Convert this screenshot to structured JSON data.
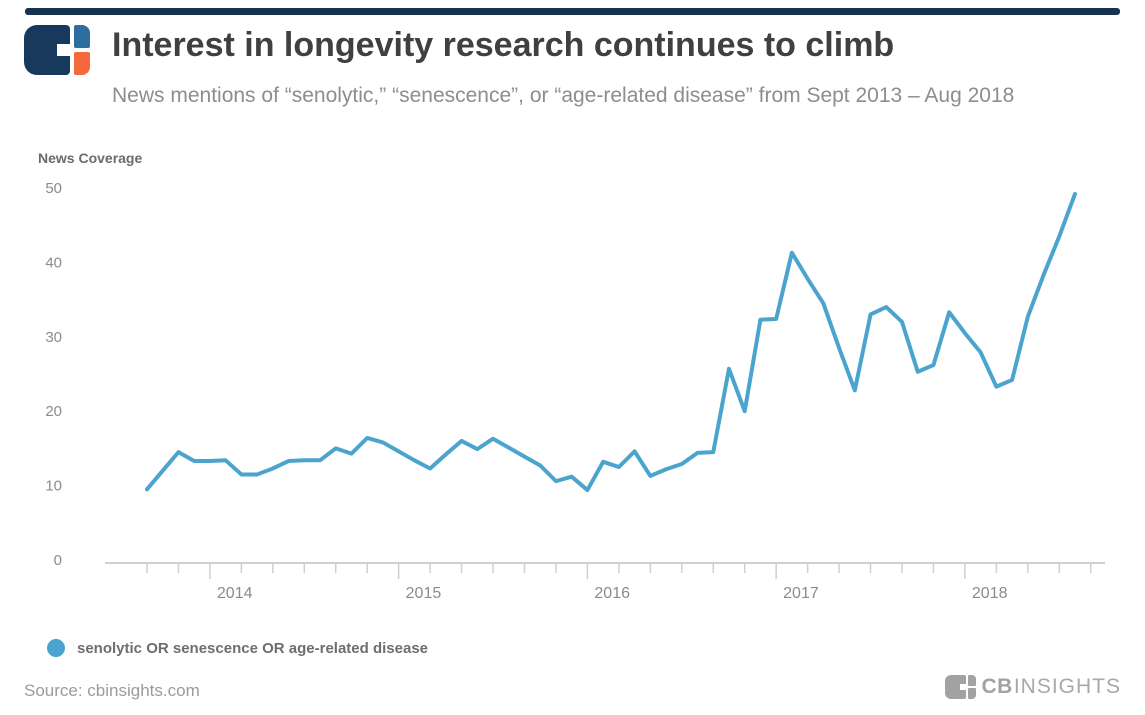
{
  "header": {
    "title": "Interest in longevity research continues to climb",
    "subtitle": "News mentions of “senolytic,” “senescence”, or “age-related disease” from Sept 2013 – Aug 2018"
  },
  "chart": {
    "axis_title": "News Coverage",
    "y_ticks": [
      50,
      40,
      30,
      20,
      10,
      0
    ],
    "x_ticks": [
      "2014",
      "2015",
      "2016",
      "2017",
      "2018"
    ],
    "legend": {
      "label": "senolytic OR senescence OR age-related disease",
      "color": "#4aa4ce"
    }
  },
  "chart_data": {
    "type": "line",
    "title": "Interest in longevity research continues to climb",
    "subtitle": "News mentions of “senolytic,” “senescence”, or “age-related disease” from Sept 2013 – Aug 2018",
    "xlabel": "",
    "ylabel": "News Coverage",
    "ylim": [
      0,
      50
    ],
    "grid": false,
    "legend_position": "bottom-left",
    "x": [
      "Sep 2013",
      "Oct 2013",
      "Nov 2013",
      "Dec 2013",
      "Jan 2014",
      "Feb 2014",
      "Mar 2014",
      "Apr 2014",
      "May 2014",
      "Jun 2014",
      "Jul 2014",
      "Aug 2014",
      "Sep 2014",
      "Oct 2014",
      "Nov 2014",
      "Dec 2014",
      "Jan 2015",
      "Feb 2015",
      "Mar 2015",
      "Apr 2015",
      "May 2015",
      "Jun 2015",
      "Jul 2015",
      "Aug 2015",
      "Sep 2015",
      "Oct 2015",
      "Nov 2015",
      "Dec 2015",
      "Jan 2016",
      "Feb 2016",
      "Mar 2016",
      "Apr 2016",
      "May 2016",
      "Jun 2016",
      "Jul 2016",
      "Aug 2016",
      "Sep 2016",
      "Oct 2016",
      "Nov 2016",
      "Dec 2016",
      "Jan 2017",
      "Feb 2017",
      "Mar 2017",
      "Apr 2017",
      "May 2017",
      "Jun 2017",
      "Jul 2017",
      "Aug 2017",
      "Sep 2017",
      "Oct 2017",
      "Nov 2017",
      "Dec 2017",
      "Jan 2018",
      "Feb 2018",
      "Mar 2018",
      "Apr 2018",
      "May 2018",
      "Jun 2018",
      "Jul 2018",
      "Aug 2018"
    ],
    "series": [
      {
        "name": "senolytic OR senescence OR age-related disease",
        "color": "#4aa4ce",
        "values": [
          9.5,
          12.0,
          14.5,
          13.3,
          13.3,
          13.4,
          11.5,
          11.5,
          12.3,
          13.3,
          13.4,
          13.4,
          15.0,
          14.3,
          16.4,
          15.8,
          14.6,
          13.4,
          12.3,
          14.2,
          16.0,
          14.9,
          16.3,
          15.1,
          13.9,
          12.7,
          10.6,
          11.2,
          9.4,
          13.2,
          12.5,
          14.6,
          11.3,
          12.2,
          12.9,
          14.4,
          14.5,
          25.7,
          20.0,
          32.3,
          32.4,
          41.3,
          37.8,
          34.5,
          28.5,
          22.8,
          33.0,
          34.0,
          32.0,
          25.3,
          26.2,
          33.3,
          30.5,
          27.9,
          23.3,
          24.2,
          32.7,
          38.3,
          43.5,
          49.2
        ]
      }
    ],
    "year_tick_indices": [
      4,
      16,
      28,
      40,
      52
    ]
  },
  "footer": {
    "source": "Source: cbinsights.com",
    "brand_cb": "CB",
    "brand_insights": "INSIGHTS"
  },
  "colors": {
    "brand_navy": "#17395c",
    "brand_blue": "#2d6e9e",
    "brand_orange": "#f4683c",
    "line_blue": "#4aa4ce",
    "axis_gray": "#cfcfcf",
    "label_gray": "#8b8b8b"
  }
}
